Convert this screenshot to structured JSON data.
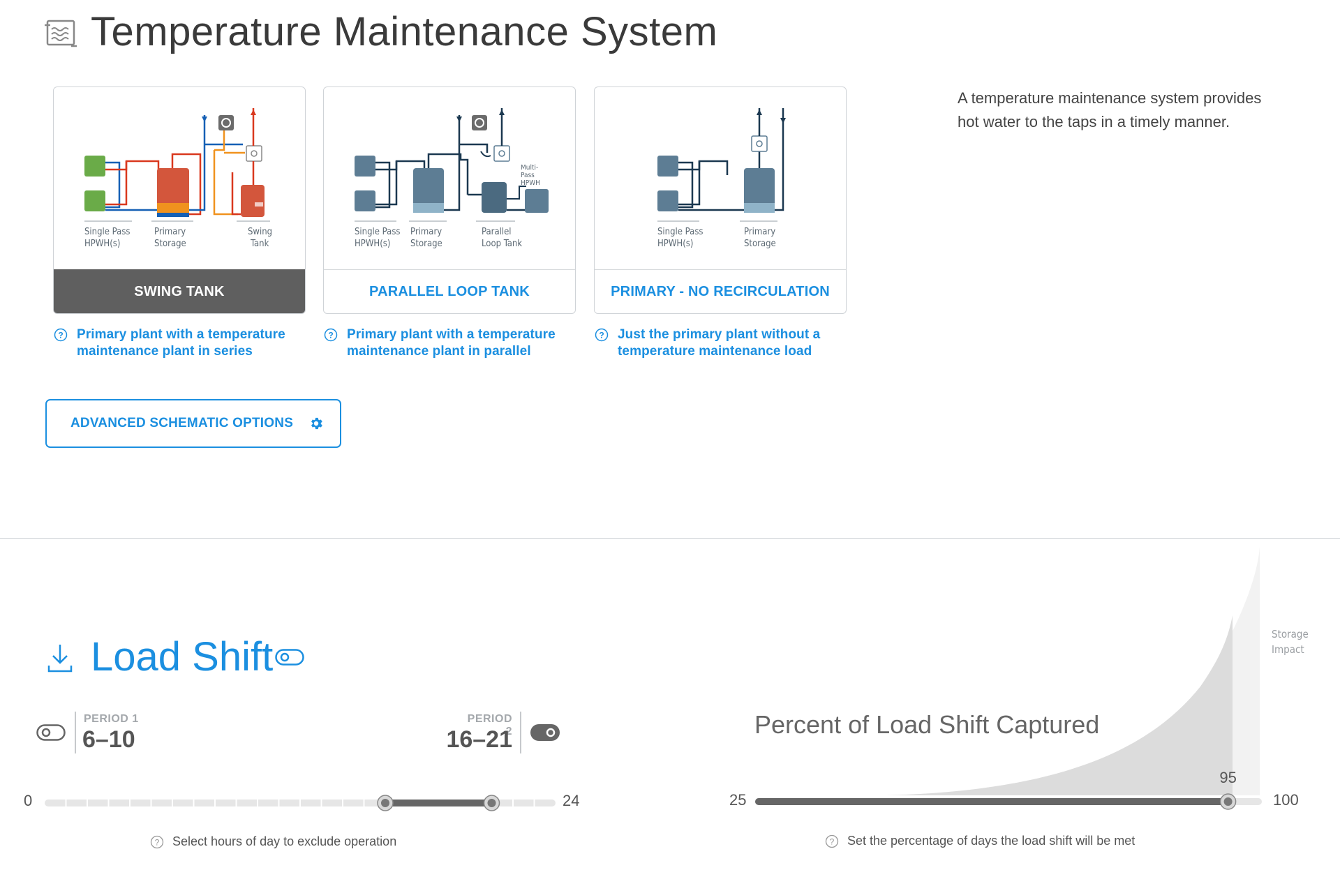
{
  "header": {
    "title": "Temperature Maintenance System",
    "icon": "water-heater-icon"
  },
  "schematics": [
    {
      "id": "swing",
      "label": "SWING TANK",
      "selected": true,
      "diagram_labels": [
        [
          "Single Pass",
          "HPWH(s)"
        ],
        [
          "Primary",
          "Storage"
        ],
        [
          "Swing",
          "Tank"
        ]
      ],
      "description": "Primary plant with a temperature maintenance plant in series"
    },
    {
      "id": "parallel",
      "label": "PARALLEL LOOP TANK",
      "selected": false,
      "diagram_labels": [
        [
          "Single Pass",
          "HPWH(s)"
        ],
        [
          "Primary",
          "Storage"
        ],
        [
          "Parallel",
          "Loop Tank"
        ]
      ],
      "multipass_label": [
        "Multi-",
        "Pass",
        "HPWH"
      ],
      "description": "Primary plant with a temperature maintenance plant in parallel"
    },
    {
      "id": "no-recirc",
      "label": "PRIMARY - NO RECIRCULATION",
      "selected": false,
      "diagram_labels": [
        [
          "Single Pass",
          "HPWH(s)"
        ],
        [
          "Primary",
          "Storage"
        ]
      ],
      "description": "Just the primary plant without a temperature maintenance load"
    }
  ],
  "side_description": "A temperature maintenance system provides hot water to the taps in a timely manner.",
  "advanced_button": {
    "label": "ADVANCED SCHEMATIC OPTIONS",
    "icon": "gear-icon"
  },
  "load_shift": {
    "title": "Load Shift",
    "icon": "download-arrow-icon",
    "enabled": true,
    "period1": {
      "label": "PERIOD 1",
      "value": "6–10",
      "enabled": false
    },
    "period2": {
      "label": "PERIOD 2",
      "value": "16–21",
      "enabled": true
    },
    "hours_slider": {
      "min": "0",
      "max": "24",
      "min_value": 0,
      "max_value": 24,
      "handle_start": 16,
      "handle_end": 21
    },
    "hours_help": "Select hours of day to exclude operation",
    "percent": {
      "title": "Percent of Load Shift Captured",
      "min": "25",
      "max": "100",
      "min_value": 25,
      "max_value": 100,
      "value": 95,
      "value_label": "95",
      "storage_label": [
        "Storage",
        "Impact"
      ],
      "help": "Set the percentage of days the load shift will be met"
    }
  },
  "colors": {
    "accent": "#1b8fe0",
    "selected_card": "#5f5f5f",
    "hpwh_green": "#6aab48",
    "tank_red": "#d3563c",
    "tank_blue": "#5d7d94",
    "pipe_red": "#d9381e",
    "pipe_blue": "#1560b5",
    "pipe_orange": "#f0921e"
  }
}
